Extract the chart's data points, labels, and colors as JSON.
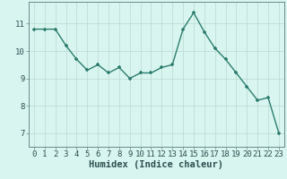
{
  "x": [
    0,
    1,
    2,
    3,
    4,
    5,
    6,
    7,
    8,
    9,
    10,
    11,
    12,
    13,
    14,
    15,
    16,
    17,
    18,
    19,
    20,
    21,
    22,
    23
  ],
  "y": [
    10.8,
    10.8,
    10.8,
    10.2,
    9.7,
    9.3,
    9.5,
    9.2,
    9.4,
    9.0,
    9.2,
    9.2,
    9.4,
    9.5,
    10.8,
    11.4,
    10.7,
    10.1,
    9.7,
    9.2,
    8.7,
    8.2,
    8.3,
    7.0
  ],
  "line_color": "#2d7d6e",
  "marker": "+",
  "marker_color": "#2d7d6e",
  "bg_color": "#d8f5f0",
  "grid_color": "#c0dcd8",
  "xlabel": "Humidex (Indice chaleur)",
  "xlim": [
    -0.5,
    23.5
  ],
  "ylim": [
    6.5,
    11.8
  ],
  "yticks": [
    7,
    8,
    9,
    10,
    11
  ],
  "xticks": [
    0,
    1,
    2,
    3,
    4,
    5,
    6,
    7,
    8,
    9,
    10,
    11,
    12,
    13,
    14,
    15,
    16,
    17,
    18,
    19,
    20,
    21,
    22,
    23
  ],
  "font_color": "#2d5050",
  "xlabel_fontsize": 7.5,
  "tick_fontsize": 6.5,
  "linewidth": 1.0,
  "markersize": 3.5,
  "spine_color": "#6a8a8a"
}
